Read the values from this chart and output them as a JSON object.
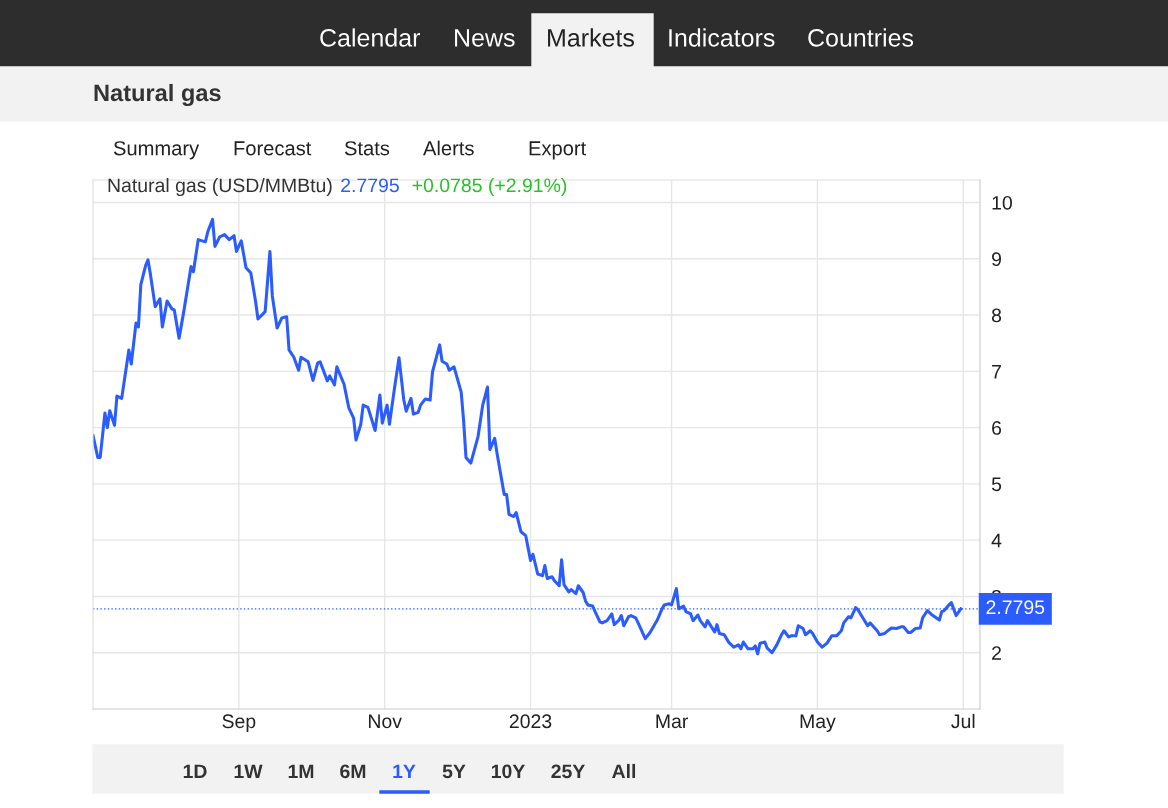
{
  "chart_data": {
    "type": "line",
    "title": "Natural gas",
    "subtitle": "Natural gas (USD/MMBtu)",
    "annotations": [
      "2.7795",
      "+0.0785 (+2.91%)",
      "Calendar",
      "News",
      "Markets",
      "Indicators",
      "Countries",
      "Summary",
      "Forecast",
      "Stats",
      "Alerts",
      "Export",
      "1D",
      "1W",
      "1M",
      "6M",
      "1Y",
      "5Y",
      "10Y",
      "25Y",
      "All"
    ],
    "x": [
      "2022-07-02",
      "2022-07-04",
      "2022-07-05",
      "2022-07-07",
      "2022-07-08",
      "2022-07-09",
      "2022-07-11",
      "2022-07-12",
      "2022-07-14",
      "2022-07-17",
      "2022-07-18",
      "2022-07-20",
      "2022-07-21",
      "2022-07-22",
      "2022-07-24",
      "2022-07-25",
      "2022-07-26",
      "2022-07-28",
      "2022-07-30",
      "2022-07-31",
      "2022-08-02",
      "2022-08-04",
      "2022-08-05",
      "2022-08-07",
      "2022-08-09",
      "2022-08-12",
      "2022-08-13",
      "2022-08-15",
      "2022-08-18",
      "2022-08-19",
      "2022-08-21",
      "2022-08-22",
      "2022-08-24",
      "2022-08-26",
      "2022-08-28",
      "2022-08-30",
      "2022-08-31",
      "2022-09-02",
      "2022-09-04",
      "2022-09-06",
      "2022-09-08",
      "2022-09-09",
      "2022-09-12",
      "2022-09-14",
      "2022-09-15",
      "2022-09-17",
      "2022-09-19",
      "2022-09-21",
      "2022-09-22",
      "2022-09-24",
      "2022-09-26",
      "2022-09-27",
      "2022-09-30",
      "2022-10-02",
      "2022-10-04",
      "2022-10-05",
      "2022-10-08",
      "2022-10-09",
      "2022-10-11",
      "2022-10-12",
      "2022-10-15",
      "2022-10-17",
      "2022-10-19",
      "2022-10-20",
      "2022-10-22",
      "2022-10-23",
      "2022-10-25",
      "2022-10-28",
      "2022-10-30",
      "2022-10-31",
      "2022-11-02",
      "2022-11-03",
      "2022-11-05",
      "2022-11-07",
      "2022-11-09",
      "2022-11-10",
      "2022-11-12",
      "2022-11-13",
      "2022-11-15",
      "2022-11-16",
      "2022-11-18",
      "2022-11-20",
      "2022-11-21",
      "2022-11-24",
      "2022-11-25",
      "2022-11-27",
      "2022-11-28",
      "2022-11-30",
      "2022-12-03",
      "2022-12-04",
      "2022-12-05",
      "2022-12-07",
      "2022-12-10",
      "2022-12-12",
      "2022-12-14",
      "2022-12-15",
      "2022-12-17",
      "2022-12-18",
      "2022-12-21",
      "2022-12-22",
      "2022-12-23",
      "2022-12-25",
      "2022-12-26",
      "2022-12-28",
      "2022-12-30",
      "2023-01-01",
      "2023-01-02",
      "2023-01-04",
      "2023-01-06",
      "2023-01-07",
      "2023-01-08",
      "2023-01-10",
      "2023-01-11",
      "2023-01-13",
      "2023-01-14",
      "2023-01-15",
      "2023-01-17",
      "2023-01-18",
      "2023-01-20",
      "2023-01-21",
      "2023-01-23",
      "2023-01-24",
      "2023-01-25",
      "2023-01-27",
      "2023-01-28",
      "2023-01-30",
      "2023-01-31",
      "2023-02-02",
      "2023-02-04",
      "2023-02-05",
      "2023-02-07",
      "2023-02-08",
      "2023-02-09",
      "2023-02-11",
      "2023-02-12",
      "2023-02-14",
      "2023-02-15",
      "2023-02-18",
      "2023-02-20",
      "2023-02-23",
      "2023-02-25",
      "2023-02-26",
      "2023-02-28",
      "2023-03-01",
      "2023-03-03",
      "2023-03-04",
      "2023-03-06",
      "2023-03-07",
      "2023-03-09",
      "2023-03-10",
      "2023-03-12",
      "2023-03-13",
      "2023-03-15",
      "2023-03-16",
      "2023-03-19",
      "2023-03-20",
      "2023-03-21",
      "2023-03-23",
      "2023-03-25",
      "2023-03-27",
      "2023-03-29",
      "2023-03-30",
      "2023-03-31",
      "2023-04-02",
      "2023-04-04",
      "2023-04-05",
      "2023-04-06",
      "2023-04-07",
      "2023-04-09",
      "2023-04-10",
      "2023-04-12",
      "2023-04-14",
      "2023-04-16",
      "2023-04-17",
      "2023-04-19",
      "2023-04-20",
      "2023-04-22",
      "2023-04-23",
      "2023-04-25",
      "2023-04-26",
      "2023-04-28",
      "2023-04-29",
      "2023-05-01",
      "2023-05-03",
      "2023-05-05",
      "2023-05-07",
      "2023-05-09",
      "2023-05-11",
      "2023-05-12",
      "2023-05-14",
      "2023-05-15",
      "2023-05-17",
      "2023-05-18",
      "2023-05-21",
      "2023-05-22",
      "2023-05-23",
      "2023-05-26",
      "2023-05-27",
      "2023-05-29",
      "2023-05-31",
      "2023-06-01",
      "2023-06-03",
      "2023-06-05",
      "2023-06-06",
      "2023-06-08",
      "2023-06-09",
      "2023-06-11",
      "2023-06-13",
      "2023-06-14",
      "2023-06-16",
      "2023-06-18",
      "2023-06-21",
      "2023-06-22",
      "2023-06-23",
      "2023-06-25",
      "2023-06-26",
      "2023-06-28",
      "2023-06-30"
    ],
    "series": [
      {
        "color": "#2b5cff",
        "values": [
          5.86,
          5.47,
          5.47,
          6.26,
          6.0,
          6.3,
          6.04,
          6.56,
          6.52,
          7.38,
          7.13,
          7.86,
          7.79,
          8.54,
          8.88,
          8.98,
          8.73,
          8.15,
          8.29,
          7.79,
          8.25,
          8.11,
          8.09,
          7.59,
          8.07,
          8.86,
          8.77,
          9.34,
          9.3,
          9.48,
          9.7,
          9.22,
          9.39,
          9.43,
          9.34,
          9.41,
          9.13,
          9.32,
          8.84,
          8.75,
          8.24,
          7.93,
          8.06,
          9.13,
          8.34,
          7.77,
          7.95,
          7.97,
          7.38,
          7.25,
          7.02,
          7.25,
          7.17,
          6.84,
          7.15,
          7.17,
          6.83,
          6.92,
          6.76,
          7.08,
          6.77,
          6.35,
          6.17,
          5.78,
          6.06,
          6.4,
          6.36,
          5.95,
          6.58,
          6.08,
          6.4,
          6.06,
          6.67,
          7.24,
          6.49,
          6.29,
          6.52,
          6.24,
          6.27,
          6.4,
          6.51,
          6.49,
          6.99,
          7.47,
          7.18,
          7.13,
          7.02,
          7.08,
          6.63,
          6.13,
          5.47,
          5.37,
          5.83,
          6.4,
          6.72,
          5.61,
          5.81,
          5.54,
          4.81,
          4.81,
          4.46,
          4.42,
          4.49,
          4.15,
          4.08,
          3.64,
          3.75,
          3.4,
          3.37,
          3.55,
          3.32,
          3.35,
          3.28,
          3.19,
          3.65,
          3.21,
          3.08,
          3.12,
          3.05,
          3.19,
          3.07,
          2.92,
          2.85,
          2.83,
          2.73,
          2.55,
          2.53,
          2.57,
          2.69,
          2.5,
          2.58,
          2.66,
          2.48,
          2.64,
          2.66,
          2.62,
          2.53,
          2.25,
          2.36,
          2.58,
          2.78,
          2.85,
          2.87,
          2.85,
          3.14,
          2.78,
          2.83,
          2.73,
          2.69,
          2.57,
          2.67,
          2.57,
          2.46,
          2.57,
          2.37,
          2.5,
          2.34,
          2.32,
          2.18,
          2.1,
          2.14,
          2.07,
          2.19,
          2.07,
          2.07,
          2.12,
          1.98,
          2.17,
          2.19,
          2.08,
          2.0,
          2.14,
          2.32,
          2.39,
          2.28,
          2.3,
          2.3,
          2.48,
          2.43,
          2.32,
          2.39,
          2.34,
          2.19,
          2.1,
          2.17,
          2.3,
          2.3,
          2.39,
          2.53,
          2.64,
          2.62,
          2.8,
          2.76,
          2.55,
          2.48,
          2.53,
          2.39,
          2.32,
          2.34,
          2.41,
          2.44,
          2.43,
          2.46,
          2.46,
          2.36,
          2.36,
          2.43,
          2.44,
          2.62,
          2.75,
          2.67,
          2.58,
          2.73,
          2.75,
          2.85,
          2.89,
          2.66,
          2.7795
        ]
      }
    ],
    "xlim": [
      "2022-07-02",
      "2023-07-08"
    ],
    "xticks": [
      {
        "value": "2022-09-01",
        "label": "Sep"
      },
      {
        "value": "2022-11-01",
        "label": "Nov"
      },
      {
        "value": "2023-01-01",
        "label": "2023"
      },
      {
        "value": "2023-03-01",
        "label": "Mar"
      },
      {
        "value": "2023-05-01",
        "label": "May"
      },
      {
        "value": "2023-07-01",
        "label": "Jul"
      }
    ],
    "ylim": [
      1,
      10.4
    ],
    "yticks": [
      2,
      3,
      4,
      5,
      6,
      7,
      8,
      9,
      10
    ],
    "ref_lines": [
      {
        "axis": "y",
        "value": 2.7795,
        "label": "2.7795",
        "color": "#2b5cff",
        "line_style": "dotted"
      }
    ],
    "grid": true,
    "legend": false,
    "marker": "none",
    "line_style": "solid"
  }
}
